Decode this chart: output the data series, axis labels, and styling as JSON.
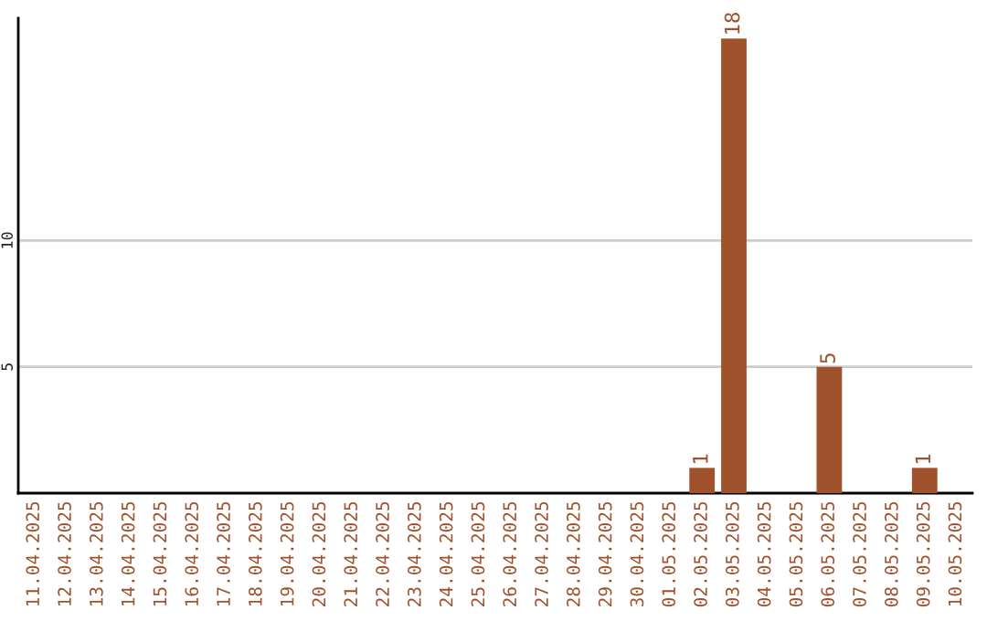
{
  "chart_data": {
    "type": "bar",
    "categories": [
      "11.04.2025",
      "12.04.2025",
      "13.04.2025",
      "14.04.2025",
      "15.04.2025",
      "16.04.2025",
      "17.04.2025",
      "18.04.2025",
      "19.04.2025",
      "20.04.2025",
      "21.04.2025",
      "22.04.2025",
      "23.04.2025",
      "24.04.2025",
      "25.04.2025",
      "26.04.2025",
      "27.04.2025",
      "28.04.2025",
      "29.04.2025",
      "30.04.2025",
      "01.05.2025",
      "02.05.2025",
      "03.05.2025",
      "04.05.2025",
      "05.05.2025",
      "06.05.2025",
      "07.05.2025",
      "08.05.2025",
      "09.05.2025",
      "10.05.2025"
    ],
    "values": [
      0,
      0,
      0,
      0,
      0,
      0,
      0,
      0,
      0,
      0,
      0,
      0,
      0,
      0,
      0,
      0,
      0,
      0,
      0,
      0,
      0,
      1,
      18,
      0,
      0,
      5,
      0,
      0,
      1,
      0
    ],
    "value_labels": [
      null,
      null,
      null,
      null,
      null,
      null,
      null,
      null,
      null,
      null,
      null,
      null,
      null,
      null,
      null,
      null,
      null,
      null,
      null,
      null,
      null,
      "1",
      "18",
      null,
      null,
      "5",
      null,
      null,
      "1",
      null
    ],
    "color": "#a0522d",
    "ylim": [
      0,
      18.8
    ],
    "yticks": [
      5,
      10
    ],
    "grid": "y",
    "legend": false
  }
}
